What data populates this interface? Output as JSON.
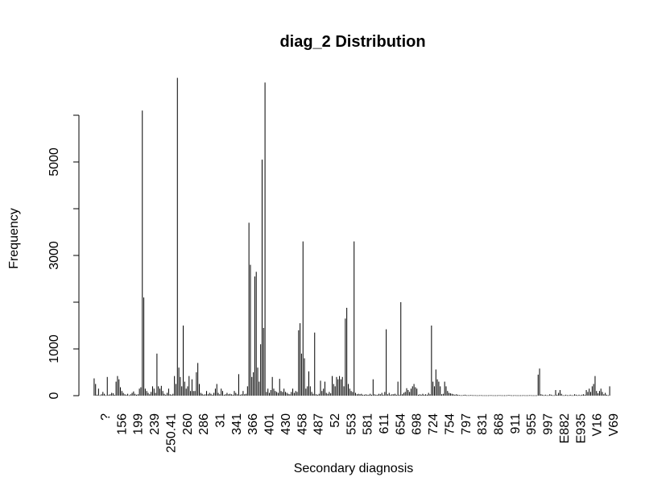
{
  "chart_data": {
    "type": "bar",
    "title": "diag_2 Distribution",
    "xlabel": "Secondary diagnosis",
    "ylabel": "Frequency",
    "ylim": [
      0,
      6800
    ],
    "y_ticks": [
      0,
      1000,
      3000,
      5000
    ],
    "y_tick_labels": [
      "0",
      "1000",
      "3000",
      "5000"
    ],
    "x_tick_labels": [
      "?",
      "156",
      "199",
      "239",
      "250.41",
      "260",
      "286",
      "31",
      "341",
      "366",
      "401",
      "430",
      "458",
      "487",
      "52",
      "553",
      "581",
      "611",
      "654",
      "698",
      "724",
      "754",
      "797",
      "831",
      "868",
      "911",
      "955",
      "997",
      "E882",
      "E935",
      "V16",
      "V69"
    ],
    "grid": false,
    "legend": "none",
    "series": [
      {
        "values": [
          370,
          250,
          20,
          150,
          10,
          30,
          80,
          40,
          10,
          400,
          20,
          30,
          60,
          50,
          20,
          300,
          420,
          350,
          180,
          100,
          60,
          30,
          20,
          40,
          10,
          30,
          60,
          90,
          40,
          20,
          30,
          150,
          180,
          6100,
          2100,
          150,
          100,
          60,
          30,
          80,
          200,
          150,
          60,
          900,
          200,
          150,
          210,
          100,
          40,
          20,
          60,
          150,
          30,
          20,
          40,
          420,
          250,
          6800,
          600,
          400,
          200,
          1500,
          300,
          150,
          200,
          420,
          100,
          350,
          100,
          100,
          500,
          700,
          250,
          60,
          40,
          20,
          30,
          100,
          30,
          60,
          40,
          20,
          60,
          150,
          250,
          60,
          30,
          150,
          100,
          20,
          30,
          60,
          30,
          40,
          30,
          20,
          100,
          60,
          30,
          460,
          20,
          30,
          100,
          30,
          40,
          200,
          3700,
          2800,
          400,
          500,
          2550,
          2650,
          600,
          300,
          1100,
          5050,
          1450,
          6700,
          80,
          150,
          60,
          120,
          400,
          150,
          100,
          80,
          60,
          360,
          100,
          80,
          150,
          80,
          60,
          40,
          30,
          80,
          150,
          60,
          100,
          80,
          1400,
          1550,
          900,
          3300,
          800,
          150,
          200,
          520,
          200,
          80,
          40,
          1350,
          30,
          20,
          40,
          320,
          100,
          150,
          300,
          60,
          40,
          80,
          50,
          420,
          250,
          200,
          400,
          350,
          420,
          350,
          400,
          200,
          1650,
          1880,
          250,
          150,
          100,
          80,
          3300,
          60,
          30,
          40,
          30,
          40,
          20,
          20,
          30,
          20,
          20,
          40,
          20,
          350,
          30,
          20,
          20,
          40,
          30,
          60,
          20,
          80,
          1420,
          30,
          60,
          20,
          30,
          30,
          40,
          20,
          300,
          20,
          2000,
          30,
          60,
          80,
          160,
          120,
          80,
          150,
          200,
          250,
          180,
          150,
          20,
          30,
          20,
          40,
          20,
          30,
          20,
          60,
          30,
          1500,
          300,
          200,
          560,
          350,
          300,
          200,
          30,
          40,
          300,
          200,
          100,
          60,
          50,
          40,
          30,
          20,
          30,
          20,
          15,
          10,
          10,
          15,
          20,
          10,
          10,
          10,
          15,
          10,
          10,
          10,
          8,
          8,
          10,
          10,
          8,
          8,
          8,
          8,
          8,
          10,
          10,
          8,
          8,
          8,
          8,
          10,
          10,
          8,
          8,
          8,
          8,
          10,
          15,
          10,
          8,
          8,
          10,
          8,
          8,
          8,
          8,
          8,
          10,
          8,
          8,
          8,
          10,
          10,
          8,
          8,
          8,
          8,
          450,
          580,
          30,
          20,
          10,
          20,
          10,
          10,
          30,
          20,
          10,
          10,
          120,
          20,
          60,
          120,
          40,
          10,
          10,
          20,
          10,
          10,
          20,
          10,
          10,
          30,
          20,
          10,
          20,
          10,
          20,
          30,
          20,
          120,
          80,
          150,
          80,
          200,
          250,
          420,
          100,
          50,
          100,
          150,
          80,
          30,
          60,
          20,
          10,
          200
        ]
      }
    ]
  }
}
